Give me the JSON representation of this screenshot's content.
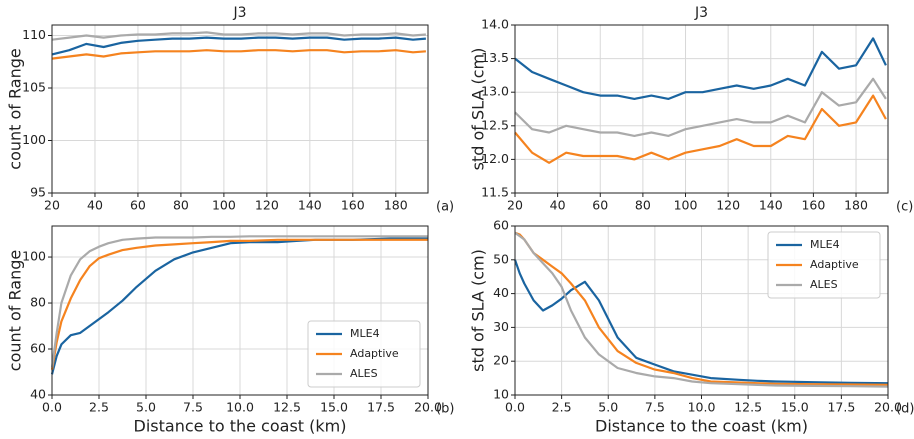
{
  "chart_data": [
    {
      "type": "line",
      "title": "J3",
      "y_label": "count of Range",
      "panel_label": "(a)",
      "x": [
        20,
        28,
        36,
        44,
        52,
        60,
        68,
        76,
        84,
        92,
        100,
        108,
        116,
        124,
        132,
        140,
        148,
        156,
        164,
        172,
        180,
        188,
        194
      ],
      "xlim": [
        20,
        195
      ],
      "xticks": [
        20,
        40,
        60,
        80,
        100,
        120,
        140,
        160,
        180
      ],
      "ylim": [
        95,
        111
      ],
      "yticks": [
        95,
        100,
        105,
        110
      ],
      "grid": true,
      "series": [
        {
          "color": "#1a64a0",
          "values": [
            108.2,
            108.6,
            109.2,
            108.9,
            109.3,
            109.5,
            109.6,
            109.7,
            109.7,
            109.8,
            109.7,
            109.7,
            109.8,
            109.8,
            109.7,
            109.8,
            109.8,
            109.6,
            109.7,
            109.7,
            109.8,
            109.6,
            109.7
          ]
        },
        {
          "color": "#f5831f",
          "values": [
            107.8,
            108.0,
            108.2,
            108.0,
            108.3,
            108.4,
            108.5,
            108.5,
            108.5,
            108.6,
            108.5,
            108.5,
            108.6,
            108.6,
            108.5,
            108.6,
            108.6,
            108.4,
            108.5,
            108.5,
            108.6,
            108.4,
            108.5
          ]
        },
        {
          "color": "#aaaaaa",
          "values": [
            109.6,
            109.8,
            110.0,
            109.8,
            110.0,
            110.1,
            110.1,
            110.2,
            110.2,
            110.3,
            110.1,
            110.1,
            110.2,
            110.2,
            110.1,
            110.2,
            110.2,
            110.0,
            110.1,
            110.1,
            110.2,
            110.0,
            110.1
          ]
        }
      ]
    },
    {
      "type": "line",
      "x_label": "Distance to the coast (km)",
      "y_label": "count of Range",
      "panel_label": "(b)",
      "x": [
        0,
        0.25,
        0.5,
        1,
        1.5,
        2,
        2.5,
        3,
        3.75,
        4.5,
        5.5,
        6.5,
        7.5,
        8.5,
        9.5,
        10.5,
        12,
        13,
        14,
        16,
        18,
        20
      ],
      "xlim": [
        0,
        20
      ],
      "xticks": [
        {
          "value": 0,
          "label": "0.0"
        },
        2.5,
        {
          "value": 5,
          "label": "5.0"
        },
        7.5,
        {
          "value": 10,
          "label": "10.0"
        },
        12.5,
        {
          "value": 15,
          "label": "15.0"
        },
        17.5,
        {
          "value": 20,
          "label": "20.0"
        }
      ],
      "ylim": [
        40,
        113.5
      ],
      "yticks": [
        40,
        60,
        80,
        100
      ],
      "grid": true,
      "legend": "lower right",
      "series": [
        {
          "name": "MLE4",
          "color": "#1a64a0",
          "values": [
            49,
            57,
            62,
            66,
            67,
            70,
            73,
            76,
            81,
            87,
            94,
            99,
            102,
            104,
            106,
            106.5,
            106.5,
            107,
            107.5,
            107.5,
            108,
            108
          ]
        },
        {
          "name": "Adaptive",
          "color": "#f5831f",
          "values": [
            51,
            63,
            72,
            82,
            90,
            96,
            99.5,
            101,
            103,
            104,
            105,
            105.5,
            106,
            106.5,
            107,
            107,
            107.5,
            107.5,
            107.5,
            107.5,
            107.5,
            107.5
          ]
        },
        {
          "name": "ALES",
          "color": "#aaaaaa",
          "values": [
            52,
            67,
            80,
            92,
            99,
            102.5,
            104.5,
            106,
            107.5,
            108,
            108.5,
            108.5,
            108.5,
            108.8,
            108.8,
            109,
            109,
            109,
            109,
            109,
            109,
            109
          ]
        }
      ]
    },
    {
      "type": "line",
      "title": "J3",
      "y_label": "std of SLA (cm)",
      "panel_label": "(c)",
      "x": [
        20,
        28,
        36,
        44,
        52,
        60,
        68,
        76,
        84,
        92,
        100,
        108,
        116,
        124,
        132,
        140,
        148,
        156,
        164,
        172,
        180,
        188,
        194
      ],
      "xlim": [
        20,
        195
      ],
      "xticks": [
        20,
        40,
        60,
        80,
        100,
        120,
        140,
        160,
        180
      ],
      "ylim": [
        11.5,
        14
      ],
      "yticks": [
        11.5,
        {
          "value": 12,
          "label": "12.0"
        },
        12.5,
        {
          "value": 13,
          "label": "13.0"
        },
        13.5,
        {
          "value": 14,
          "label": "14.0"
        }
      ],
      "grid": true,
      "series": [
        {
          "color": "#1a64a0",
          "values": [
            13.5,
            13.3,
            13.2,
            13.1,
            13.0,
            12.95,
            12.95,
            12.9,
            12.95,
            12.9,
            13.0,
            13.0,
            13.05,
            13.1,
            13.05,
            13.1,
            13.2,
            13.1,
            13.6,
            13.35,
            13.4,
            13.8,
            13.4
          ]
        },
        {
          "color": "#f5831f",
          "values": [
            12.4,
            12.1,
            11.95,
            12.1,
            12.05,
            12.05,
            12.05,
            12.0,
            12.1,
            12.0,
            12.1,
            12.15,
            12.2,
            12.3,
            12.2,
            12.2,
            12.35,
            12.3,
            12.75,
            12.5,
            12.55,
            12.95,
            12.6
          ]
        },
        {
          "color": "#aaaaaa",
          "values": [
            12.7,
            12.45,
            12.4,
            12.5,
            12.45,
            12.4,
            12.4,
            12.35,
            12.4,
            12.35,
            12.45,
            12.5,
            12.55,
            12.6,
            12.55,
            12.55,
            12.65,
            12.55,
            13.0,
            12.8,
            12.85,
            13.2,
            12.9
          ]
        }
      ]
    },
    {
      "type": "line",
      "x_label": "Distance to the coast (km)",
      "y_label": "std of SLA (cm)",
      "panel_label": "(d)",
      "x": [
        0,
        0.25,
        0.5,
        1,
        1.5,
        2,
        2.5,
        3,
        3.75,
        4.5,
        5.5,
        6.5,
        7.5,
        8.5,
        9.5,
        10.5,
        12,
        13,
        14,
        16,
        18,
        20
      ],
      "xlim": [
        0,
        20
      ],
      "xticks": [
        {
          "value": 0,
          "label": "0.0"
        },
        2.5,
        {
          "value": 5,
          "label": "5.0"
        },
        7.5,
        {
          "value": 10,
          "label": "10.0"
        },
        12.5,
        {
          "value": 15,
          "label": "15.0"
        },
        17.5,
        {
          "value": 20,
          "label": "20.0"
        }
      ],
      "ylim": [
        10,
        60
      ],
      "yticks": [
        10,
        20,
        30,
        40,
        50,
        60
      ],
      "grid": true,
      "legend": "upper right",
      "series": [
        {
          "name": "MLE4",
          "color": "#1a64a0",
          "values": [
            50,
            46,
            43,
            38,
            35,
            36.5,
            38.5,
            41,
            43.5,
            38,
            27,
            21,
            19,
            17,
            16,
            15,
            14.5,
            14.2,
            14,
            13.8,
            13.6,
            13.5
          ]
        },
        {
          "name": "Adaptive",
          "color": "#f5831f",
          "values": [
            58,
            57.5,
            56,
            52,
            50,
            48,
            46,
            43,
            38,
            30,
            23,
            19.5,
            17.5,
            16.5,
            15,
            14,
            13.7,
            13.5,
            13.3,
            13.2,
            13.1,
            13
          ]
        },
        {
          "name": "ALES",
          "color": "#aaaaaa",
          "values": [
            58,
            57,
            56,
            52,
            49,
            46,
            42,
            35,
            27,
            22,
            18,
            16.5,
            15.5,
            15,
            14,
            13.5,
            13.2,
            13,
            12.8,
            12.7,
            12.6,
            12.5
          ]
        }
      ]
    }
  ]
}
